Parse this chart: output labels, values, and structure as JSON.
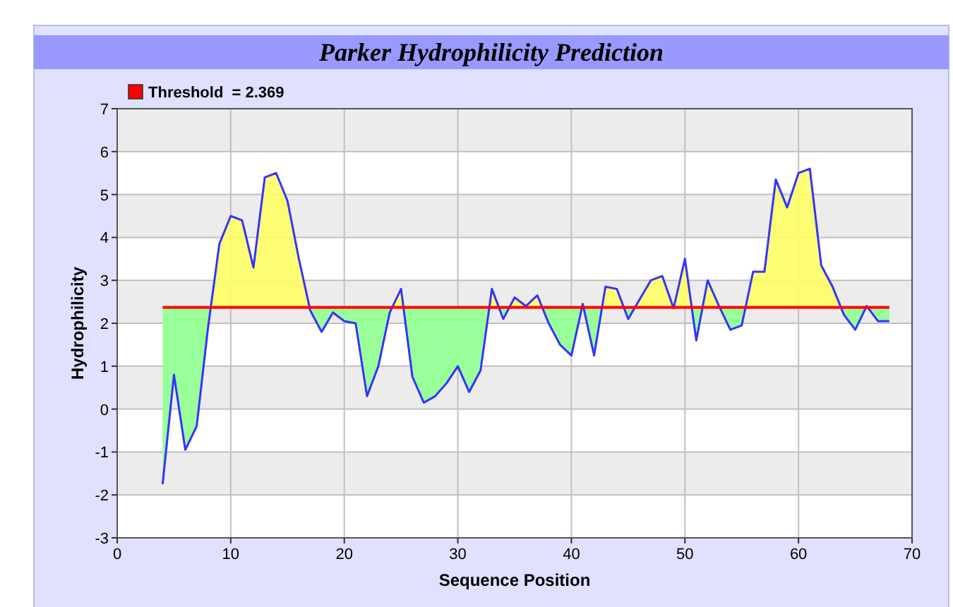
{
  "chart_data": {
    "type": "line",
    "title": "Parker Hydrophilicity Prediction",
    "xlabel": "Sequence Position",
    "ylabel": "Hydrophilicity",
    "x": [
      4,
      5,
      6,
      7,
      8,
      9,
      10,
      11,
      12,
      13,
      14,
      15,
      16,
      17,
      18,
      19,
      20,
      21,
      22,
      23,
      24,
      25,
      26,
      27,
      28,
      29,
      30,
      31,
      32,
      33,
      34,
      35,
      36,
      37,
      38,
      39,
      40,
      41,
      42,
      43,
      44,
      45,
      46,
      47,
      48,
      49,
      50,
      51,
      52,
      53,
      54,
      55,
      56,
      57,
      58,
      59,
      60,
      61,
      62,
      63,
      64,
      65,
      66,
      67,
      68
    ],
    "series": [
      {
        "color": "#3333ff",
        "values": [
          -1.75,
          0.8,
          -0.95,
          -0.4,
          1.9,
          3.85,
          4.5,
          4.4,
          3.3,
          5.4,
          5.5,
          4.85,
          3.5,
          2.3,
          1.8,
          2.25,
          2.05,
          2.0,
          0.3,
          1.0,
          2.25,
          2.8,
          0.75,
          0.15,
          0.3,
          0.6,
          1.0,
          0.4,
          0.9,
          2.8,
          2.1,
          2.6,
          2.4,
          2.65,
          2.0,
          1.5,
          1.25,
          2.45,
          1.25,
          2.85,
          2.8,
          2.1,
          2.55,
          3.0,
          3.1,
          2.35,
          3.5,
          1.6,
          3.0,
          2.4,
          1.85,
          1.95,
          3.2,
          3.2,
          5.35,
          4.7,
          5.5,
          5.6,
          3.35,
          2.85,
          2.2,
          1.85,
          2.4,
          2.05,
          2.05
        ]
      }
    ],
    "xlim": [
      0,
      70
    ],
    "xticks": [
      0,
      10,
      20,
      30,
      40,
      50,
      60,
      70
    ],
    "ylim": [
      -3,
      7
    ],
    "yticks": [
      -3,
      -2,
      -1,
      0,
      1,
      2,
      3,
      4,
      5,
      6,
      7
    ],
    "ref_lines": [
      {
        "axis": "y",
        "value": 2.369,
        "label": "Threshold  = 2.369",
        "color": "#ff0000"
      }
    ],
    "grid": true,
    "legend": "top left"
  }
}
